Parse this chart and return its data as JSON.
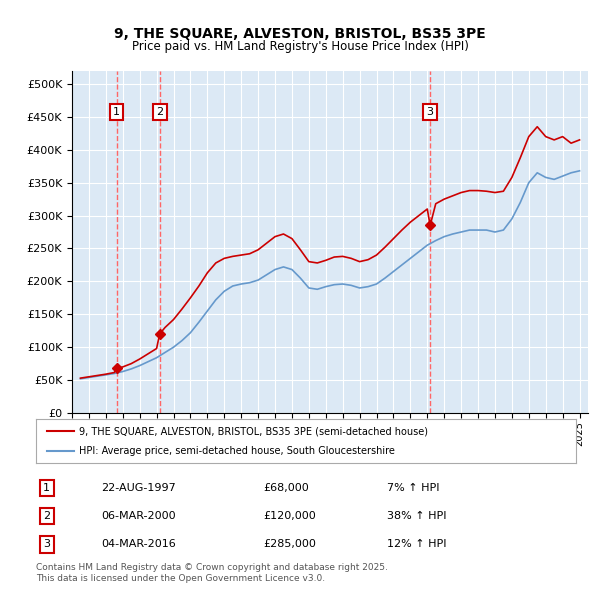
{
  "title": "9, THE SQUARE, ALVESTON, BRISTOL, BS35 3PE",
  "subtitle": "Price paid vs. HM Land Registry's House Price Index (HPI)",
  "bg_color": "#dce9f5",
  "plot_bg_color": "#dce9f5",
  "ylim": [
    0,
    520000
  ],
  "yticks": [
    0,
    50000,
    100000,
    150000,
    200000,
    250000,
    300000,
    350000,
    400000,
    450000,
    500000
  ],
  "ytick_labels": [
    "£0",
    "£50K",
    "£100K",
    "£150K",
    "£200K",
    "£250K",
    "£300K",
    "£350K",
    "£400K",
    "£450K",
    "£500K"
  ],
  "xlim_start": 1995.0,
  "xlim_end": 2025.5,
  "xtick_years": [
    1995,
    1996,
    1997,
    1998,
    1999,
    2000,
    2001,
    2002,
    2003,
    2004,
    2005,
    2006,
    2007,
    2008,
    2009,
    2010,
    2011,
    2012,
    2013,
    2014,
    2015,
    2016,
    2017,
    2018,
    2019,
    2020,
    2021,
    2022,
    2023,
    2024,
    2025
  ],
  "purchases": [
    {
      "num": 1,
      "date": "22-AUG-1997",
      "year": 1997.64,
      "price": 68000,
      "hpi_pct": "7% ↑ HPI"
    },
    {
      "num": 2,
      "date": "06-MAR-2000",
      "year": 2000.18,
      "price": 120000,
      "hpi_pct": "38% ↑ HPI"
    },
    {
      "num": 3,
      "date": "04-MAR-2016",
      "year": 2016.17,
      "price": 285000,
      "hpi_pct": "12% ↑ HPI"
    }
  ],
  "red_line_color": "#cc0000",
  "blue_line_color": "#6699cc",
  "dashed_line_color": "#ff6666",
  "marker_color": "#cc0000",
  "legend_label_red": "9, THE SQUARE, ALVESTON, BRISTOL, BS35 3PE (semi-detached house)",
  "legend_label_blue": "HPI: Average price, semi-detached house, South Gloucestershire",
  "footer": "Contains HM Land Registry data © Crown copyright and database right 2025.\nThis data is licensed under the Open Government Licence v3.0.",
  "hpi_data": {
    "years": [
      1995.5,
      1996.0,
      1996.5,
      1997.0,
      1997.5,
      1998.0,
      1998.5,
      1999.0,
      1999.5,
      2000.0,
      2000.5,
      2001.0,
      2001.5,
      2002.0,
      2002.5,
      2003.0,
      2003.5,
      2004.0,
      2004.5,
      2005.0,
      2005.5,
      2006.0,
      2006.5,
      2007.0,
      2007.5,
      2008.0,
      2008.5,
      2009.0,
      2009.5,
      2010.0,
      2010.5,
      2011.0,
      2011.5,
      2012.0,
      2012.5,
      2013.0,
      2013.5,
      2014.0,
      2014.5,
      2015.0,
      2015.5,
      2016.0,
      2016.5,
      2017.0,
      2017.5,
      2018.0,
      2018.5,
      2019.0,
      2019.5,
      2020.0,
      2020.5,
      2021.0,
      2021.5,
      2022.0,
      2022.5,
      2023.0,
      2023.5,
      2024.0,
      2024.5,
      2025.0
    ],
    "values": [
      52000,
      54000,
      56000,
      58000,
      60000,
      63000,
      67000,
      72000,
      78000,
      84000,
      92000,
      100000,
      110000,
      122000,
      138000,
      155000,
      172000,
      185000,
      193000,
      196000,
      198000,
      202000,
      210000,
      218000,
      222000,
      218000,
      205000,
      190000,
      188000,
      192000,
      195000,
      196000,
      194000,
      190000,
      192000,
      196000,
      205000,
      215000,
      225000,
      235000,
      245000,
      255000,
      262000,
      268000,
      272000,
      275000,
      278000,
      278000,
      278000,
      275000,
      278000,
      295000,
      320000,
      350000,
      365000,
      358000,
      355000,
      360000,
      365000,
      368000
    ]
  },
  "property_line_data": {
    "years": [
      1995.5,
      1996.0,
      1996.5,
      1997.0,
      1997.5,
      1997.64,
      1998.0,
      1998.5,
      1999.0,
      1999.5,
      2000.0,
      2000.18,
      2000.5,
      2001.0,
      2001.5,
      2002.0,
      2002.5,
      2003.0,
      2003.5,
      2004.0,
      2004.5,
      2005.0,
      2005.5,
      2006.0,
      2006.5,
      2007.0,
      2007.5,
      2008.0,
      2008.5,
      2009.0,
      2009.5,
      2010.0,
      2010.5,
      2011.0,
      2011.5,
      2012.0,
      2012.5,
      2013.0,
      2013.5,
      2014.0,
      2014.5,
      2015.0,
      2015.5,
      2016.0,
      2016.17,
      2016.5,
      2017.0,
      2017.5,
      2018.0,
      2018.5,
      2019.0,
      2019.5,
      2020.0,
      2020.5,
      2021.0,
      2021.5,
      2022.0,
      2022.5,
      2023.0,
      2023.5,
      2024.0,
      2024.5,
      2025.0
    ],
    "values": [
      53000,
      55000,
      57000,
      59000,
      61500,
      68000,
      70000,
      75000,
      82000,
      90000,
      98000,
      120000,
      130000,
      142000,
      158000,
      175000,
      193000,
      213000,
      228000,
      235000,
      238000,
      240000,
      242000,
      248000,
      258000,
      268000,
      272000,
      265000,
      248000,
      230000,
      228000,
      232000,
      237000,
      238000,
      235000,
      230000,
      233000,
      240000,
      252000,
      265000,
      278000,
      290000,
      300000,
      310000,
      285000,
      318000,
      325000,
      330000,
      335000,
      338000,
      338000,
      337000,
      335000,
      337000,
      358000,
      388000,
      420000,
      435000,
      420000,
      415000,
      420000,
      410000,
      415000
    ]
  }
}
